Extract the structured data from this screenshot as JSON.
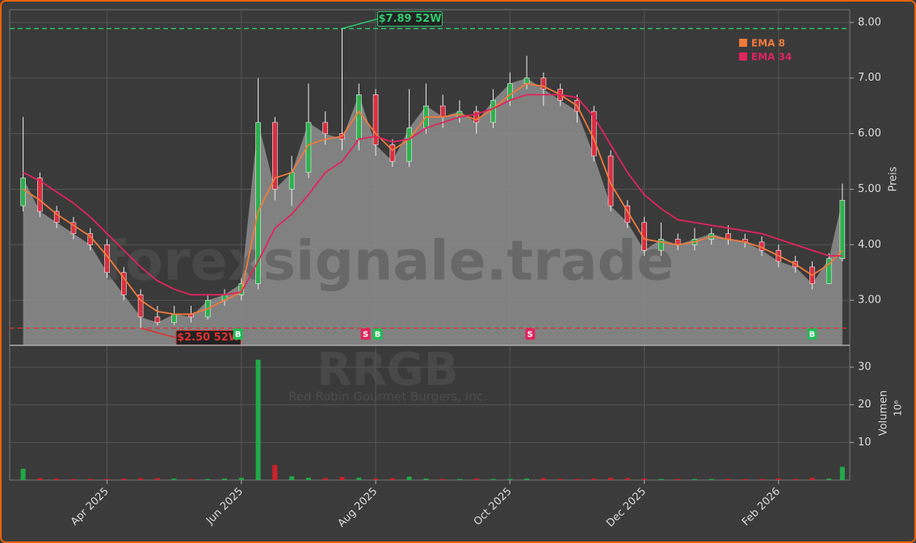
{
  "chart_data": {
    "type": "candlestick",
    "watermark": "forexsignale.trade",
    "symbol": "RRGB",
    "company": "Red Robin Gourmet Burgers, Inc.",
    "ylabel": "Preis",
    "y2label": "Volumen",
    "y2unit": "10⁶",
    "xlim": [
      1.55,
      14.06
    ],
    "xticks": [
      {
        "value": 3,
        "label": "Apr 2025"
      },
      {
        "value": 5,
        "label": "Jun 2025"
      },
      {
        "value": 7,
        "label": "Aug 2025"
      },
      {
        "value": 9,
        "label": "Oct 2025"
      },
      {
        "value": 11,
        "label": "Dec 2025"
      },
      {
        "value": 13,
        "label": "Feb 2026"
      }
    ],
    "ylim": [
      2.19,
      8.23
    ],
    "yticks": [
      {
        "value": 3,
        "label": "3.00"
      },
      {
        "value": 4,
        "label": "4.00"
      },
      {
        "value": 5,
        "label": "5.00"
      },
      {
        "value": 6,
        "label": "6.00"
      },
      {
        "value": 7,
        "label": "7.00"
      },
      {
        "value": 8,
        "label": "8.00"
      }
    ],
    "y2lim": [
      0,
      35.8
    ],
    "y2ticks": [
      10,
      20,
      30
    ],
    "grid": true,
    "up_color": "#22a84a",
    "down_color": "#d0202a",
    "area_color": "#8a8a8a",
    "x": [
      1.75,
      2.0,
      2.25,
      2.5,
      2.75,
      3.0,
      3.25,
      3.5,
      3.75,
      4.0,
      4.25,
      4.5,
      4.75,
      5.0,
      5.25,
      5.5,
      5.75,
      6.0,
      6.25,
      6.5,
      6.75,
      7.0,
      7.25,
      7.5,
      7.75,
      8.0,
      8.25,
      8.5,
      8.75,
      9.0,
      9.25,
      9.5,
      9.75,
      10.0,
      10.25,
      10.5,
      10.75,
      11.0,
      11.25,
      11.5,
      11.75,
      12.0,
      12.25,
      12.5,
      12.75,
      13.0,
      13.25,
      13.5,
      13.75,
      13.95
    ],
    "open": [
      4.7,
      5.2,
      4.6,
      4.4,
      4.2,
      4.0,
      3.5,
      3.1,
      2.7,
      2.6,
      2.75,
      2.7,
      3.0,
      3.1,
      3.3,
      6.2,
      5.0,
      5.3,
      6.2,
      6.0,
      5.9,
      6.7,
      5.8,
      5.5,
      6.1,
      6.5,
      6.3,
      6.4,
      6.2,
      6.6,
      6.9,
      7.0,
      6.8,
      6.6,
      6.4,
      5.6,
      4.7,
      4.4,
      3.9,
      4.1,
      4.0,
      4.1,
      4.2,
      4.1,
      4.05,
      3.9,
      3.7,
      3.6,
      3.3,
      3.75
    ],
    "high": [
      6.3,
      5.3,
      4.7,
      4.5,
      4.3,
      4.1,
      3.6,
      3.2,
      2.9,
      2.9,
      2.9,
      3.1,
      3.2,
      3.4,
      7.0,
      6.3,
      5.6,
      6.9,
      6.4,
      7.89,
      6.9,
      6.8,
      5.9,
      6.8,
      6.9,
      6.7,
      6.6,
      6.5,
      6.8,
      7.1,
      7.4,
      7.1,
      6.9,
      6.7,
      6.5,
      5.7,
      4.8,
      4.5,
      4.4,
      4.2,
      4.3,
      4.3,
      4.35,
      4.2,
      4.15,
      4.0,
      3.8,
      3.7,
      3.85,
      5.1
    ],
    "low": [
      4.6,
      4.5,
      4.3,
      4.1,
      3.9,
      3.4,
      3.0,
      2.5,
      2.55,
      2.55,
      2.6,
      2.65,
      2.9,
      3.0,
      3.2,
      4.8,
      4.7,
      5.2,
      5.8,
      5.7,
      5.7,
      5.6,
      5.4,
      5.4,
      6.0,
      6.1,
      6.2,
      6.0,
      6.1,
      6.5,
      6.8,
      6.5,
      6.5,
      6.2,
      5.5,
      4.6,
      4.3,
      3.8,
      3.8,
      3.9,
      3.9,
      4.0,
      4.0,
      3.95,
      3.8,
      3.6,
      3.5,
      3.2,
      3.3,
      3.7
    ],
    "close": [
      5.2,
      4.6,
      4.4,
      4.2,
      4.0,
      3.5,
      3.1,
      2.7,
      2.6,
      2.75,
      2.7,
      3.0,
      3.1,
      3.3,
      6.2,
      5.0,
      5.3,
      6.2,
      6.0,
      5.9,
      6.7,
      5.8,
      5.5,
      6.1,
      6.5,
      6.3,
      6.4,
      6.2,
      6.6,
      6.9,
      7.0,
      6.8,
      6.6,
      6.4,
      5.6,
      4.7,
      4.4,
      3.9,
      4.1,
      4.0,
      4.1,
      4.2,
      4.1,
      4.05,
      3.9,
      3.7,
      3.6,
      3.3,
      3.75,
      4.8
    ],
    "volume": [
      3,
      0.5,
      0.4,
      0.3,
      0.3,
      0.3,
      0.4,
      0.5,
      0.5,
      0.4,
      0.3,
      0.3,
      0.4,
      0.6,
      32,
      4,
      1,
      0.6,
      0.5,
      0.8,
      0.6,
      0.4,
      0.5,
      0.9,
      0.4,
      0.3,
      0.3,
      0.4,
      0.3,
      0.3,
      0.4,
      0.5,
      0.3,
      0.3,
      0.4,
      0.6,
      0.5,
      0.4,
      0.3,
      0.3,
      0.3,
      0.3,
      0.3,
      0.3,
      0.3,
      0.4,
      0.3,
      0.6,
      0.4,
      3.5
    ],
    "series": [
      {
        "name": "EMA 8",
        "color": "#f07a3a",
        "values": [
          5.0,
          4.8,
          4.55,
          4.35,
          4.15,
          3.8,
          3.4,
          3.0,
          2.8,
          2.75,
          2.75,
          2.85,
          3.0,
          3.15,
          4.6,
          5.2,
          5.3,
          5.8,
          5.9,
          5.95,
          6.4,
          6.0,
          5.7,
          5.9,
          6.3,
          6.3,
          6.35,
          6.25,
          6.45,
          6.7,
          6.9,
          6.85,
          6.7,
          6.5,
          5.9,
          5.1,
          4.6,
          4.1,
          4.05,
          4.0,
          4.05,
          4.15,
          4.1,
          4.05,
          3.95,
          3.8,
          3.65,
          3.45,
          3.65,
          3.9
        ]
      },
      {
        "name": "EMA 34",
        "color": "#e0245e",
        "values": [
          5.3,
          5.15,
          4.95,
          4.75,
          4.5,
          4.2,
          3.9,
          3.6,
          3.35,
          3.2,
          3.1,
          3.1,
          3.1,
          3.15,
          3.7,
          4.3,
          4.55,
          4.9,
          5.3,
          5.5,
          5.9,
          5.95,
          5.85,
          5.9,
          6.1,
          6.2,
          6.3,
          6.35,
          6.45,
          6.6,
          6.7,
          6.7,
          6.7,
          6.65,
          6.3,
          5.8,
          5.3,
          4.9,
          4.65,
          4.45,
          4.4,
          4.35,
          4.3,
          4.25,
          4.2,
          4.1,
          4.0,
          3.9,
          3.8,
          3.8
        ]
      }
    ],
    "levels": [
      {
        "value": 7.89,
        "label": "$7.89 52W",
        "x": 6.5,
        "color": "#2ecc71"
      },
      {
        "value": 2.5,
        "label": "$2.50 52W",
        "x": 3.5,
        "color": "#e03030"
      }
    ],
    "signals": [
      {
        "label": "B",
        "x": 4.95,
        "color": "#22bb55"
      },
      {
        "label": "S",
        "x": 6.85,
        "color": "#e0245e"
      },
      {
        "label": "B",
        "x": 7.03,
        "color": "#22bb55"
      },
      {
        "label": "S",
        "x": 9.3,
        "color": "#e0245e"
      },
      {
        "label": "B",
        "x": 13.5,
        "color": "#22bb55"
      }
    ]
  }
}
